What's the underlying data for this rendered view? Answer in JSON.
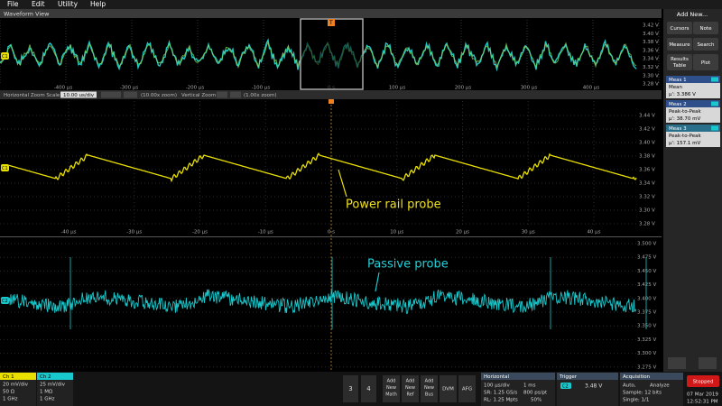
{
  "menu": [
    "File",
    "Edit",
    "Utility",
    "Help"
  ],
  "title": "Waveform View",
  "trigger_marker": "T",
  "overview": {
    "x_labels": [
      "-400 µs",
      "-300 µs",
      "-200 µs",
      "-100 µs",
      "0 s",
      "100 µs",
      "200 µs",
      "300 µs",
      "400 µs"
    ],
    "y_labels": [
      "3.42 V",
      "3.40 V",
      "3.38 V",
      "3.36 V",
      "3.34 V",
      "3.32 V",
      "3.30 V",
      "3.28 V"
    ],
    "channel": "C1"
  },
  "zoom_bar": {
    "scale_label": "Horizontal Zoom Scale",
    "scale_value": "10.00 us/div",
    "h_zoom": "(10.00x zoom)",
    "v_label": "Vertical Zoom",
    "v_zoom": "(1.00x zoom)"
  },
  "zoom1": {
    "x_labels": [
      "-40 µs",
      "-30 µs",
      "-20 µs",
      "-10 µs",
      "0 s",
      "10 µs",
      "20 µs",
      "30 µs",
      "40 µs"
    ],
    "y_labels": [
      "3.44 V",
      "3.42 V",
      "3.40 V",
      "3.38 V",
      "3.36 V",
      "3.34 V",
      "3.32 V",
      "3.30 V",
      "3.28 V"
    ],
    "channel": "C1",
    "annotation": "Power rail probe"
  },
  "zoom2": {
    "y_labels": [
      "3.500 V",
      "3.475 V",
      "3.450 V",
      "3.425 V",
      "3.400 V",
      "3.375 V",
      "3.350 V",
      "3.325 V",
      "3.300 V",
      "3.275 V"
    ],
    "channel": "C2",
    "annotation": "Passive probe"
  },
  "sidebar": {
    "title": "Add New...",
    "buttons": [
      "Cursors",
      "Note",
      "Measure",
      "Search",
      "Results Table",
      "Plot"
    ],
    "measurements": [
      {
        "name": "Meas 1",
        "type": "Mean",
        "value": "µ': 3.386 V"
      },
      {
        "name": "Meas 2",
        "type": "Peak-to-Peak",
        "value": "µ': 38.70 mV"
      },
      {
        "name": "Meas 3",
        "type": "Peak-to-Peak",
        "value": "µ': 157.1 mV"
      }
    ]
  },
  "channels": [
    {
      "name": "Ch 1",
      "scale": "20 mV/div",
      "impedance": "50 Ω",
      "bandwidth": "1 GHz"
    },
    {
      "name": "Ch 2",
      "scale": "25 mV/div",
      "impedance": "1 MΩ",
      "bandwidth": "1 GHz"
    }
  ],
  "channel_buttons": [
    "3",
    "4"
  ],
  "add_buttons": [
    [
      "Add",
      "New",
      "Math"
    ],
    [
      "Add",
      "New",
      "Ref"
    ],
    [
      "Add",
      "New",
      "Bus"
    ]
  ],
  "tools": [
    "DVM",
    "AFG"
  ],
  "horizontal": {
    "title": "Horizontal",
    "scale": "100 µs/div",
    "record": "1 ms",
    "sr": "SR: 1.25 GS/s",
    "pt": "800 ps/pt",
    "rl": "RL: 1.25 Mpts",
    "pos": "50%"
  },
  "trigger": {
    "title": "Trigger",
    "channel": "C2",
    "level": "3.48 V"
  },
  "acquisition": {
    "title": "Acquisition",
    "mode": "Auto,",
    "analyze": "Analyze",
    "sample": "Sample: 12 bits",
    "single": "Single: 1/1"
  },
  "status": "Stopped",
  "date": "07 Mar 2019",
  "time": "12:52:31 PM"
}
